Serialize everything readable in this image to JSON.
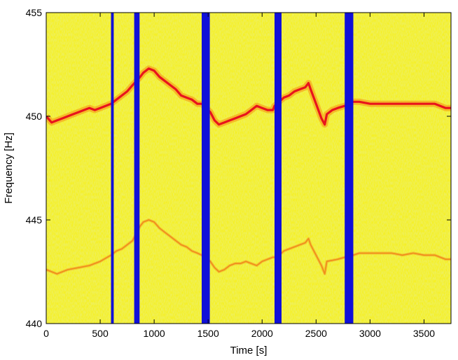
{
  "chart_data": {
    "type": "heatmap",
    "title": "",
    "xlabel": "Time [s]",
    "ylabel": "Frequency [Hz]",
    "xlim": [
      0,
      3750
    ],
    "ylim": [
      440,
      455
    ],
    "xticks": [
      0,
      500,
      1000,
      1500,
      2000,
      2500,
      3000,
      3500
    ],
    "yticks": [
      440,
      445,
      450,
      455
    ],
    "background_colormap": [
      "#d6e23a",
      "#f0f020",
      "#fbf12a"
    ],
    "colors": {
      "background": "#eef024",
      "fundamental": "#e8141c",
      "harmonic_trace": "#f08a1c",
      "gap": "#1010d8"
    },
    "gaps_s": [
      [
        600,
        625
      ],
      [
        815,
        865
      ],
      [
        1440,
        1515
      ],
      [
        2115,
        2180
      ],
      [
        2765,
        2845
      ]
    ],
    "series": [
      {
        "x": [
          0,
          50,
          100,
          150,
          200,
          250,
          300,
          350,
          400,
          450,
          500,
          550,
          600,
          650,
          700,
          750,
          800,
          870,
          900,
          950,
          1000,
          1050,
          1100,
          1150,
          1200,
          1250,
          1300,
          1350,
          1400,
          1440,
          1520,
          1560,
          1600,
          1650,
          1700,
          1750,
          1800,
          1850,
          1900,
          1950,
          2000,
          2050,
          2100,
          2115,
          2180,
          2200,
          2250,
          2300,
          2350,
          2400,
          2430,
          2450,
          2500,
          2550,
          2580,
          2600,
          2650,
          2700,
          2765,
          2845,
          2900,
          3000,
          3100,
          3200,
          3300,
          3400,
          3500,
          3600,
          3700,
          3750
        ],
        "values": [
          450.0,
          449.7,
          449.8,
          449.9,
          450.0,
          450.1,
          450.2,
          450.3,
          450.4,
          450.3,
          450.4,
          450.5,
          450.6,
          450.8,
          451.0,
          451.2,
          451.5,
          451.9,
          452.1,
          452.3,
          452.2,
          451.9,
          451.7,
          451.5,
          451.3,
          451.0,
          450.9,
          450.8,
          450.6,
          450.6,
          450.2,
          449.8,
          449.6,
          449.7,
          449.8,
          449.9,
          450.0,
          450.1,
          450.3,
          450.5,
          450.4,
          450.3,
          450.3,
          450.5,
          450.8,
          450.9,
          451.0,
          451.2,
          451.3,
          451.4,
          451.6,
          451.3,
          450.6,
          449.9,
          449.6,
          450.1,
          450.3,
          450.4,
          450.5,
          450.7,
          450.7,
          450.6,
          450.6,
          450.6,
          450.6,
          450.6,
          450.6,
          450.6,
          450.4,
          450.4
        ]
      },
      {
        "x": [
          0,
          100,
          200,
          300,
          400,
          500,
          600,
          650,
          700,
          750,
          800,
          870,
          900,
          950,
          1000,
          1050,
          1100,
          1150,
          1200,
          1250,
          1300,
          1350,
          1400,
          1440,
          1520,
          1560,
          1600,
          1650,
          1700,
          1750,
          1800,
          1850,
          1900,
          1950,
          2000,
          2050,
          2100,
          2115,
          2180,
          2200,
          2250,
          2300,
          2350,
          2400,
          2430,
          2450,
          2500,
          2550,
          2580,
          2600,
          2700,
          2765,
          2845,
          2900,
          3000,
          3100,
          3200,
          3300,
          3400,
          3500,
          3600,
          3700,
          3750
        ],
        "values": [
          442.6,
          442.4,
          442.6,
          442.7,
          442.8,
          443.0,
          443.3,
          443.5,
          443.6,
          443.8,
          444.0,
          444.7,
          444.9,
          445.0,
          444.9,
          444.6,
          444.4,
          444.2,
          444.0,
          443.8,
          443.7,
          443.5,
          443.4,
          443.3,
          443.0,
          442.7,
          442.5,
          442.6,
          442.8,
          442.9,
          442.9,
          443.0,
          442.9,
          442.8,
          443.0,
          443.1,
          443.2,
          443.2,
          443.4,
          443.5,
          443.6,
          443.7,
          443.8,
          443.9,
          444.1,
          443.8,
          443.3,
          442.8,
          442.4,
          443.0,
          443.1,
          443.2,
          443.3,
          443.4,
          443.4,
          443.4,
          443.4,
          443.3,
          443.4,
          443.3,
          443.3,
          443.1,
          443.1
        ]
      }
    ]
  }
}
